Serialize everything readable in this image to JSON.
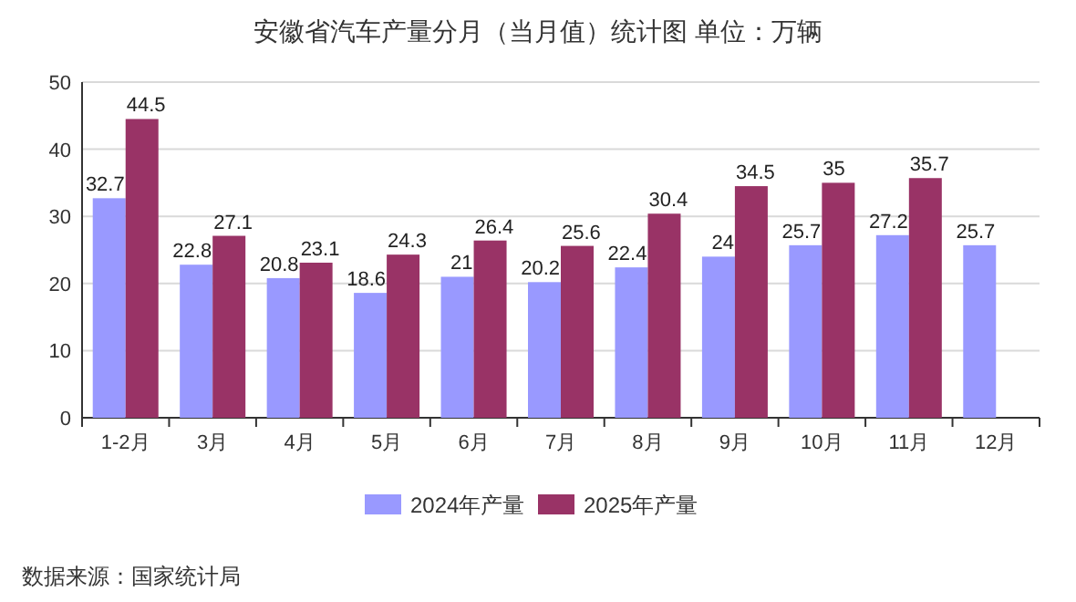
{
  "chart_data": {
    "type": "bar",
    "title": "安徽省汽车产量分月（当月值）统计图 单位：万辆",
    "categories": [
      "1-2月",
      "3月",
      "4月",
      "5月",
      "6月",
      "7月",
      "8月",
      "9月",
      "10月",
      "11月",
      "12月"
    ],
    "series": [
      {
        "name": "2024年产量",
        "color": "#9999ff",
        "values": [
          32.7,
          22.8,
          20.8,
          18.6,
          21,
          20.2,
          22.4,
          24,
          25.7,
          27.2,
          25.7
        ]
      },
      {
        "name": "2025年产量",
        "color": "#993366",
        "values": [
          44.5,
          27.1,
          23.1,
          24.3,
          26.4,
          25.6,
          30.4,
          34.5,
          35,
          35.7,
          null
        ]
      }
    ],
    "ylim": [
      0,
      50
    ],
    "yticks": [
      0,
      10,
      20,
      30,
      40,
      50
    ],
    "grid": "y",
    "legend": "bottom",
    "data_labels": true,
    "annotations": [
      "数据来源：国家统计局"
    ]
  }
}
